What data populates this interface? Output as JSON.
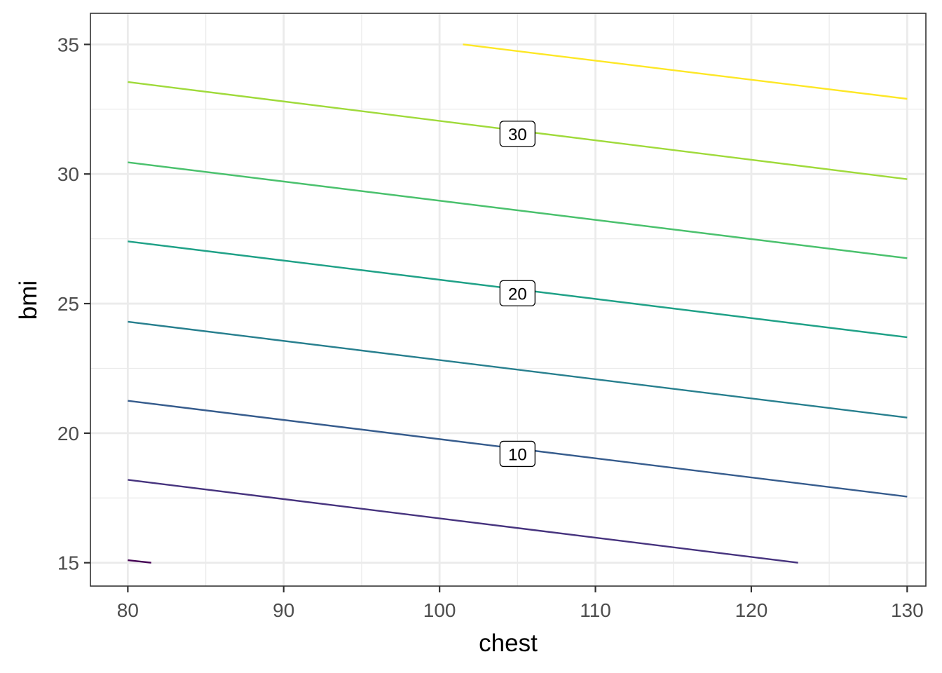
{
  "chart_data": {
    "type": "contour",
    "xlabel": "chest",
    "ylabel": "bmi",
    "xlim": [
      77.6,
      131.2
    ],
    "ylim": [
      14.1,
      36.2
    ],
    "x_ticks": [
      {
        "value": 80,
        "label": "80"
      },
      {
        "value": 90,
        "label": "90"
      },
      {
        "value": 100,
        "label": "100"
      },
      {
        "value": 110,
        "label": "110"
      },
      {
        "value": 120,
        "label": "120"
      },
      {
        "value": 130,
        "label": "130"
      }
    ],
    "y_ticks": [
      {
        "value": 15,
        "label": "15"
      },
      {
        "value": 20,
        "label": "20"
      },
      {
        "value": 25,
        "label": "25"
      },
      {
        "value": 30,
        "label": "30"
      },
      {
        "value": 35,
        "label": "35"
      }
    ],
    "x_minor": [
      85,
      95,
      105,
      115,
      125
    ],
    "y_minor": [
      17.5,
      22.5,
      27.5,
      32.5
    ],
    "grid": true,
    "contours": [
      {
        "color": "#440154",
        "points": [
          [
            80,
            15.1
          ],
          [
            81.5,
            15.0
          ]
        ]
      },
      {
        "color": "#46337E",
        "points": [
          [
            80,
            18.2
          ],
          [
            123,
            15.0
          ]
        ]
      },
      {
        "color": "#365C8D",
        "points": [
          [
            80,
            21.25
          ],
          [
            130,
            17.55
          ]
        ]
      },
      {
        "color": "#277F8E",
        "points": [
          [
            80,
            24.3
          ],
          [
            130,
            20.6
          ]
        ]
      },
      {
        "color": "#1FA187",
        "points": [
          [
            80,
            27.4
          ],
          [
            130,
            23.7
          ]
        ]
      },
      {
        "color": "#4AC16D",
        "points": [
          [
            80,
            30.45
          ],
          [
            130,
            26.75
          ]
        ]
      },
      {
        "color": "#9FDA3A",
        "points": [
          [
            80,
            33.55
          ],
          [
            130,
            29.8
          ]
        ]
      },
      {
        "color": "#FDE725",
        "points": [
          [
            101.5,
            35.0
          ],
          [
            130,
            32.9
          ]
        ]
      }
    ],
    "labels": [
      {
        "text": "10",
        "x": 105,
        "y": 19.2
      },
      {
        "text": "20",
        "x": 105,
        "y": 25.4
      },
      {
        "text": "30",
        "x": 105,
        "y": 31.55
      }
    ]
  }
}
